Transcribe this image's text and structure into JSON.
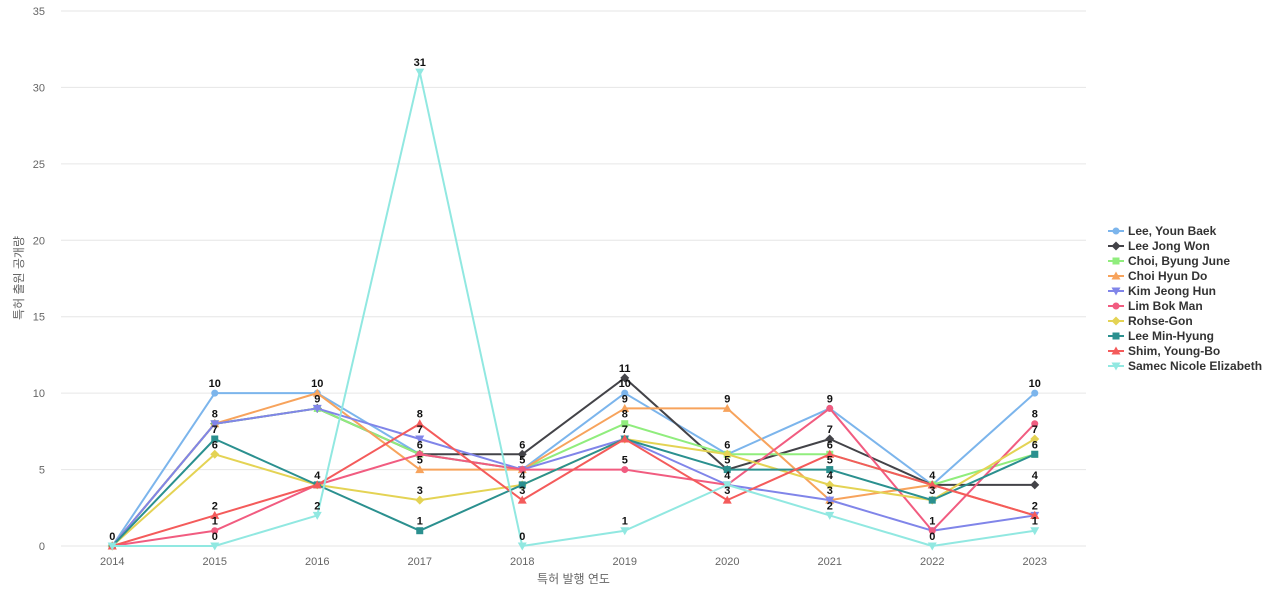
{
  "chart_data": {
    "type": "line",
    "title": "",
    "xlabel": "특허 발행 연도",
    "ylabel": "특허 출원 공개량",
    "ylim": [
      0,
      35
    ],
    "yticks": [
      0,
      5,
      10,
      15,
      20,
      25,
      30,
      35
    ],
    "grid": true,
    "legend_position": "right",
    "categories": [
      "2014",
      "2015",
      "2016",
      "2017",
      "2018",
      "2019",
      "2020",
      "2021",
      "2022",
      "2023"
    ],
    "series": [
      {
        "name": "Lee, Youn Baek",
        "color": "#7cb5ec",
        "marker": "circle",
        "values": [
          0,
          10,
          10,
          6,
          5,
          10,
          6,
          9,
          4,
          10
        ]
      },
      {
        "name": "Lee Jong Won",
        "color": "#434348",
        "marker": "diamond",
        "values": [
          0,
          8,
          9,
          6,
          6,
          11,
          5,
          7,
          4,
          4
        ]
      },
      {
        "name": "Choi, Byung June",
        "color": "#90ed7d",
        "marker": "square",
        "values": [
          0,
          8,
          9,
          6,
          5,
          8,
          6,
          6,
          4,
          6
        ]
      },
      {
        "name": "Choi Hyun Do",
        "color": "#f7a35c",
        "marker": "triangle",
        "values": [
          0,
          8,
          10,
          5,
          5,
          9,
          9,
          3,
          4,
          2
        ]
      },
      {
        "name": "Kim Jeong Hun",
        "color": "#8085e9",
        "marker": "triangle-down",
        "values": [
          0,
          8,
          9,
          7,
          5,
          7,
          4,
          3,
          1,
          2
        ]
      },
      {
        "name": "Lim Bok Man",
        "color": "#f15c80",
        "marker": "circle",
        "values": [
          0,
          1,
          4,
          6,
          5,
          5,
          4,
          9,
          1,
          8
        ]
      },
      {
        "name": "Rohse-Gon",
        "color": "#e4d354",
        "marker": "diamond",
        "values": [
          0,
          6,
          4,
          3,
          4,
          7,
          6,
          4,
          3,
          7
        ]
      },
      {
        "name": "Lee Min-Hyung",
        "color": "#2b908f",
        "marker": "square",
        "values": [
          0,
          7,
          4,
          1,
          4,
          7,
          5,
          5,
          3,
          6
        ]
      },
      {
        "name": "Shim, Young-Bo",
        "color": "#f45b5b",
        "marker": "triangle",
        "values": [
          0,
          2,
          4,
          8,
          3,
          7,
          3,
          6,
          4,
          2
        ]
      },
      {
        "name": "Samec Nicole Elizabeth",
        "color": "#91e8e1",
        "marker": "triangle-down",
        "values": [
          0,
          0,
          2,
          31,
          0,
          1,
          4,
          2,
          0,
          1
        ]
      }
    ],
    "data_labels": [
      {
        "x": "2014",
        "y": 0,
        "text": "0"
      },
      {
        "x": "2015",
        "y": 10,
        "text": "10"
      },
      {
        "x": "2015",
        "y": 8,
        "text": "8"
      },
      {
        "x": "2015",
        "y": 7,
        "text": "7"
      },
      {
        "x": "2015",
        "y": 6,
        "text": "6"
      },
      {
        "x": "2015",
        "y": 2,
        "text": "2"
      },
      {
        "x": "2015",
        "y": 1,
        "text": "1"
      },
      {
        "x": "2015",
        "y": 0,
        "text": "0"
      },
      {
        "x": "2016",
        "y": 10,
        "text": "10"
      },
      {
        "x": "2016",
        "y": 9,
        "text": "9"
      },
      {
        "x": "2016",
        "y": 4,
        "text": "4"
      },
      {
        "x": "2016",
        "y": 2,
        "text": "2"
      },
      {
        "x": "2017",
        "y": 31,
        "text": "31"
      },
      {
        "x": "2017",
        "y": 8,
        "text": "8"
      },
      {
        "x": "2017",
        "y": 7,
        "text": "7"
      },
      {
        "x": "2017",
        "y": 6,
        "text": "6"
      },
      {
        "x": "2017",
        "y": 5,
        "text": "5"
      },
      {
        "x": "2017",
        "y": 3,
        "text": "3"
      },
      {
        "x": "2017",
        "y": 1,
        "text": "1"
      },
      {
        "x": "2018",
        "y": 6,
        "text": "6"
      },
      {
        "x": "2018",
        "y": 5,
        "text": "5"
      },
      {
        "x": "2018",
        "y": 4,
        "text": "4"
      },
      {
        "x": "2018",
        "y": 3,
        "text": "3"
      },
      {
        "x": "2018",
        "y": 0,
        "text": "0"
      },
      {
        "x": "2019",
        "y": 11,
        "text": "11"
      },
      {
        "x": "2019",
        "y": 10,
        "text": "10"
      },
      {
        "x": "2019",
        "y": 9,
        "text": "9"
      },
      {
        "x": "2019",
        "y": 8,
        "text": "8"
      },
      {
        "x": "2019",
        "y": 7,
        "text": "7"
      },
      {
        "x": "2019",
        "y": 5,
        "text": "5"
      },
      {
        "x": "2019",
        "y": 1,
        "text": "1"
      },
      {
        "x": "2020",
        "y": 9,
        "text": "9"
      },
      {
        "x": "2020",
        "y": 6,
        "text": "6"
      },
      {
        "x": "2020",
        "y": 5,
        "text": "5"
      },
      {
        "x": "2020",
        "y": 4,
        "text": "4"
      },
      {
        "x": "2020",
        "y": 3,
        "text": "3"
      },
      {
        "x": "2021",
        "y": 9,
        "text": "9"
      },
      {
        "x": "2021",
        "y": 7,
        "text": "7"
      },
      {
        "x": "2021",
        "y": 6,
        "text": "6"
      },
      {
        "x": "2021",
        "y": 5,
        "text": "5"
      },
      {
        "x": "2021",
        "y": 4,
        "text": "4"
      },
      {
        "x": "2021",
        "y": 3,
        "text": "3"
      },
      {
        "x": "2021",
        "y": 2,
        "text": "2"
      },
      {
        "x": "2022",
        "y": 4,
        "text": "4"
      },
      {
        "x": "2022",
        "y": 3,
        "text": "3"
      },
      {
        "x": "2022",
        "y": 1,
        "text": "1"
      },
      {
        "x": "2022",
        "y": 0,
        "text": "0"
      },
      {
        "x": "2023",
        "y": 10,
        "text": "10"
      },
      {
        "x": "2023",
        "y": 8,
        "text": "8"
      },
      {
        "x": "2023",
        "y": 7,
        "text": "7"
      },
      {
        "x": "2023",
        "y": 6,
        "text": "6"
      },
      {
        "x": "2023",
        "y": 4,
        "text": "4"
      },
      {
        "x": "2023",
        "y": 2,
        "text": "2"
      },
      {
        "x": "2023",
        "y": 1,
        "text": "1"
      }
    ]
  }
}
